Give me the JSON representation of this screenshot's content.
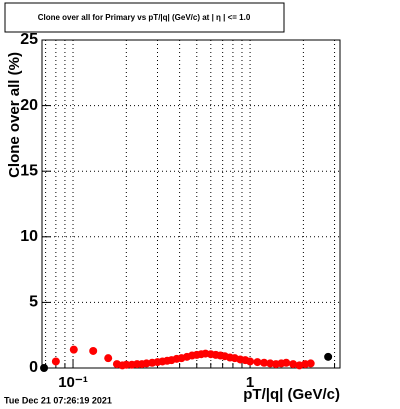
{
  "chart_data": {
    "type": "scatter",
    "title": "Clone  over all for Primary vs pT/|q| (GeV/c) at | η | <= 1.0",
    "y_label": "Clone  over all (%)",
    "x_label": "pT/|q| (GeV/c)",
    "timestamp": "Tue Dec 21 07:26:19 2021",
    "x_log": true,
    "grid": true,
    "xlim": [
      0.0668,
      3.22
    ],
    "ylim": [
      0,
      25
    ],
    "yticks": [
      0,
      5,
      10,
      15,
      20,
      25
    ],
    "xticks": [
      {
        "value": 0.1,
        "label": "10⁻¹"
      },
      1
    ],
    "xminorticks": [
      0.07,
      0.08,
      0.09,
      0.2,
      0.3,
      0.4,
      0.5,
      0.6,
      0.7,
      0.8,
      0.9,
      2,
      3
    ],
    "series": [
      {
        "color": "#ff0000",
        "x": [
          0.08,
          0.101,
          0.13,
          0.158,
          0.177,
          0.19,
          0.2,
          0.215,
          0.23,
          0.245,
          0.26,
          0.28,
          0.3,
          0.32,
          0.34,
          0.36,
          0.385,
          0.41,
          0.44,
          0.47,
          0.5,
          0.53,
          0.56,
          0.6,
          0.64,
          0.68,
          0.72,
          0.77,
          0.82,
          0.88,
          0.94,
          1.0,
          1.1,
          1.2,
          1.3,
          1.4,
          1.5,
          1.6,
          1.75,
          1.9,
          2.05,
          2.2
        ],
        "values": [
          0.5,
          1.4,
          1.3,
          0.75,
          0.3,
          0.2,
          0.25,
          0.25,
          0.3,
          0.3,
          0.35,
          0.4,
          0.45,
          0.5,
          0.55,
          0.6,
          0.7,
          0.75,
          0.85,
          0.95,
          1.0,
          1.05,
          1.1,
          1.05,
          1.0,
          0.95,
          0.9,
          0.8,
          0.75,
          0.65,
          0.6,
          0.5,
          0.45,
          0.4,
          0.35,
          0.3,
          0.35,
          0.4,
          0.3,
          0.2,
          0.3,
          0.35
        ]
      },
      {
        "color": "#000000",
        "x": [
          0.0686,
          2.76
        ],
        "values": [
          0,
          0.85
        ]
      }
    ]
  }
}
